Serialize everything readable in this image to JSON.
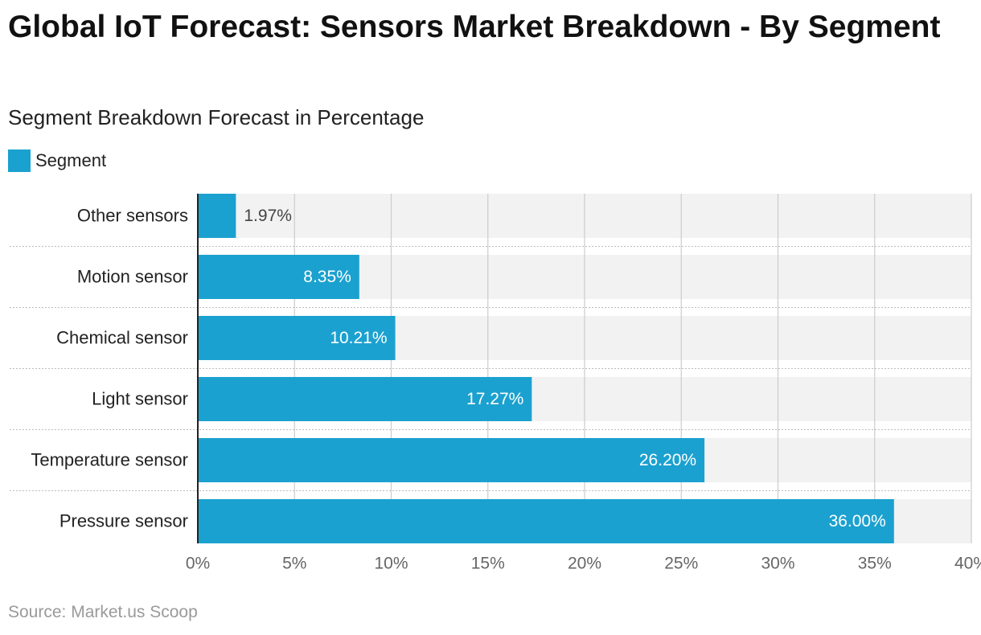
{
  "header": {
    "title": "Global IoT Forecast: Sensors Market Breakdown - By Segment",
    "subtitle": "Segment Breakdown Forecast in Percentage"
  },
  "legend": {
    "label": "Segment"
  },
  "source": "Source: Market.us Scoop",
  "colors": {
    "bar": "#1ba1cf",
    "band": "#f2f2f2",
    "grid": "#cccccc",
    "axis": "#222222"
  },
  "chart_data": {
    "type": "bar",
    "orientation": "horizontal",
    "title": "Global IoT Forecast: Sensors Market Breakdown - By Segment",
    "subtitle": "Segment Breakdown Forecast in Percentage",
    "categories": [
      "Other sensors",
      "Motion sensor",
      "Chemical sensor",
      "Light sensor",
      "Temperature sensor",
      "Pressure sensor"
    ],
    "series": [
      {
        "name": "Segment",
        "values": [
          1.97,
          8.35,
          10.21,
          17.27,
          26.2,
          36.0
        ]
      }
    ],
    "data_labels": [
      "1.97%",
      "8.35%",
      "10.21%",
      "17.27%",
      "26.20%",
      "36.00%"
    ],
    "xlim": [
      0,
      40
    ],
    "x_ticks": [
      0,
      5,
      10,
      15,
      20,
      25,
      30,
      35,
      40
    ],
    "x_tick_labels": [
      "0%",
      "5%",
      "10%",
      "15%",
      "20%",
      "25%",
      "30%",
      "35%",
      "40%"
    ],
    "grid": true,
    "legend_position": "top-left"
  }
}
